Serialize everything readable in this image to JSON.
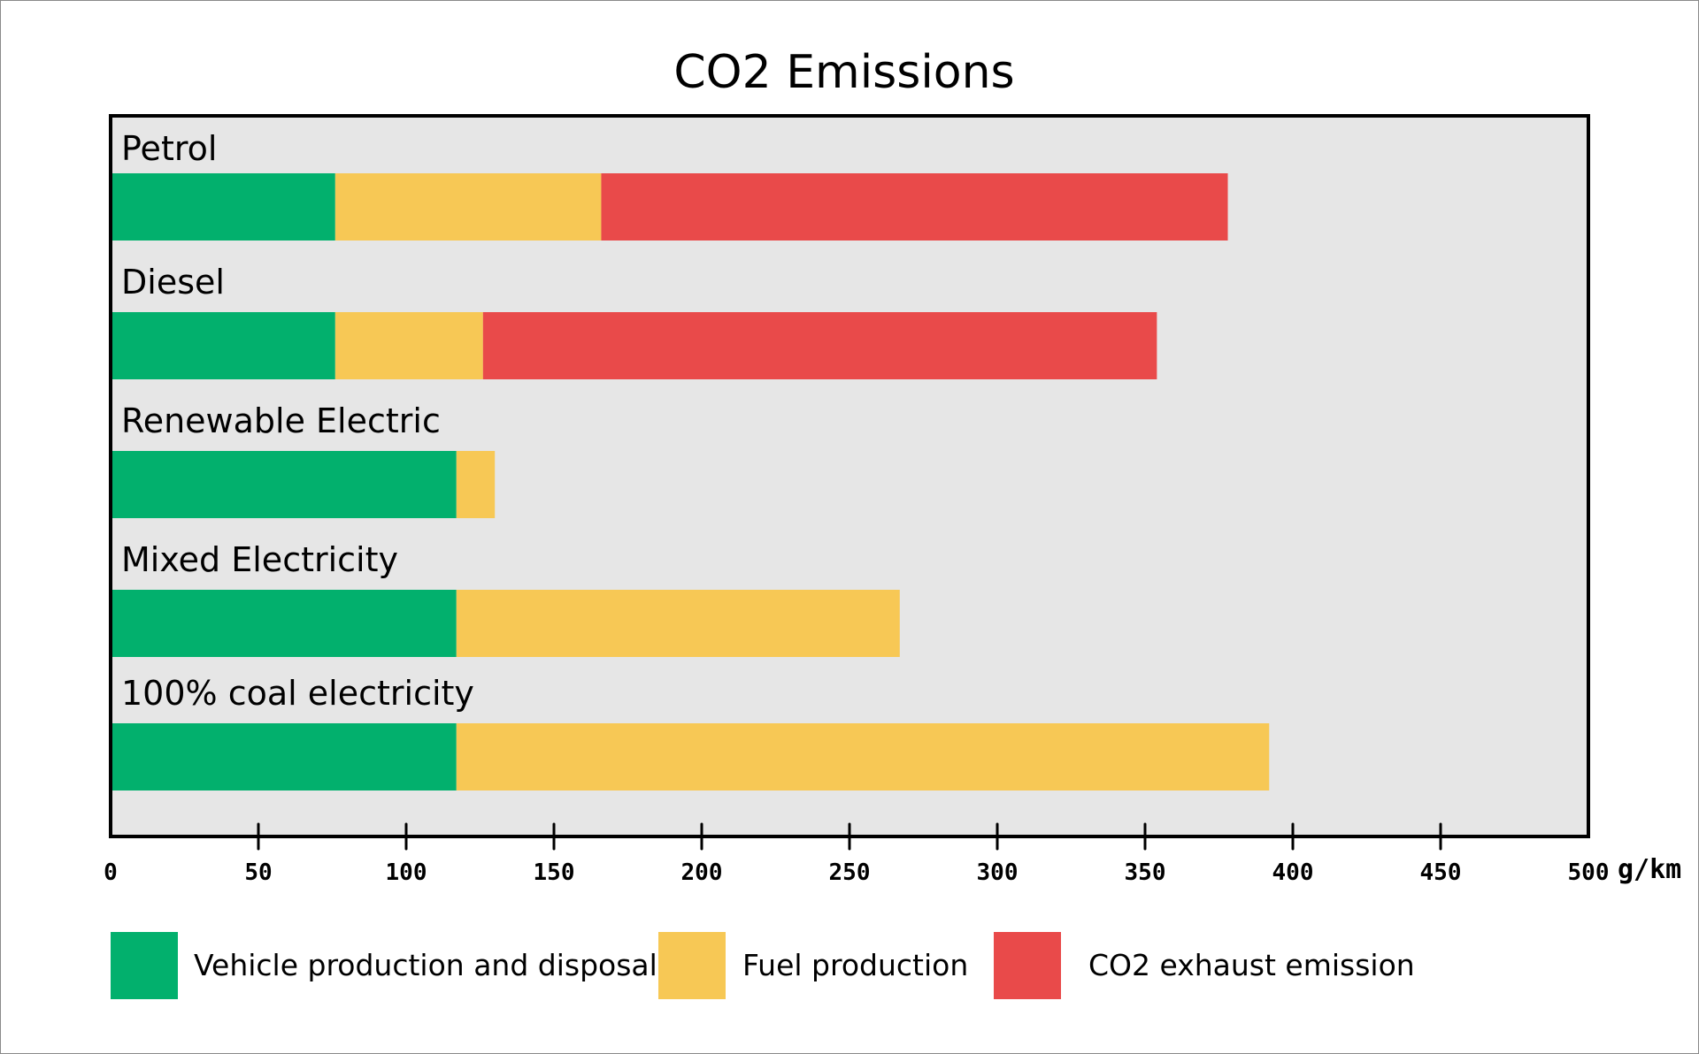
{
  "colors": {
    "plot_background": "#e6e6e6",
    "axis": "#000000",
    "vehicle": "#02b06d",
    "fuel": "#f7c855",
    "exhaust": "#e94a4a"
  },
  "chart_data": {
    "type": "bar",
    "orientation": "horizontal",
    "stacked": true,
    "title": "CO2 Emissions",
    "xlabel": "g/km",
    "ylabel": "",
    "xlim": [
      0,
      500
    ],
    "xticks": [
      0,
      50,
      100,
      150,
      200,
      250,
      300,
      350,
      400,
      450,
      500
    ],
    "xtick_labels": [
      "0",
      "50",
      "100",
      "150",
      "200",
      "250",
      "300",
      "350",
      "400",
      "450",
      "500"
    ],
    "grid": false,
    "legend_position": "bottom",
    "categories": [
      "Petrol",
      "Diesel",
      "Renewable Electric",
      "Mixed Electricity",
      "100% coal electricity"
    ],
    "series": [
      {
        "name": "Vehicle production and disposal",
        "color": "#02b06d",
        "values": [
          76,
          76,
          117,
          117,
          117
        ]
      },
      {
        "name": "Fuel production",
        "color": "#f7c855",
        "values": [
          90,
          50,
          13,
          150,
          275
        ]
      },
      {
        "name": "CO2 exhaust emission",
        "color": "#e94a4a",
        "values": [
          212,
          228,
          0,
          0,
          0
        ]
      }
    ]
  }
}
